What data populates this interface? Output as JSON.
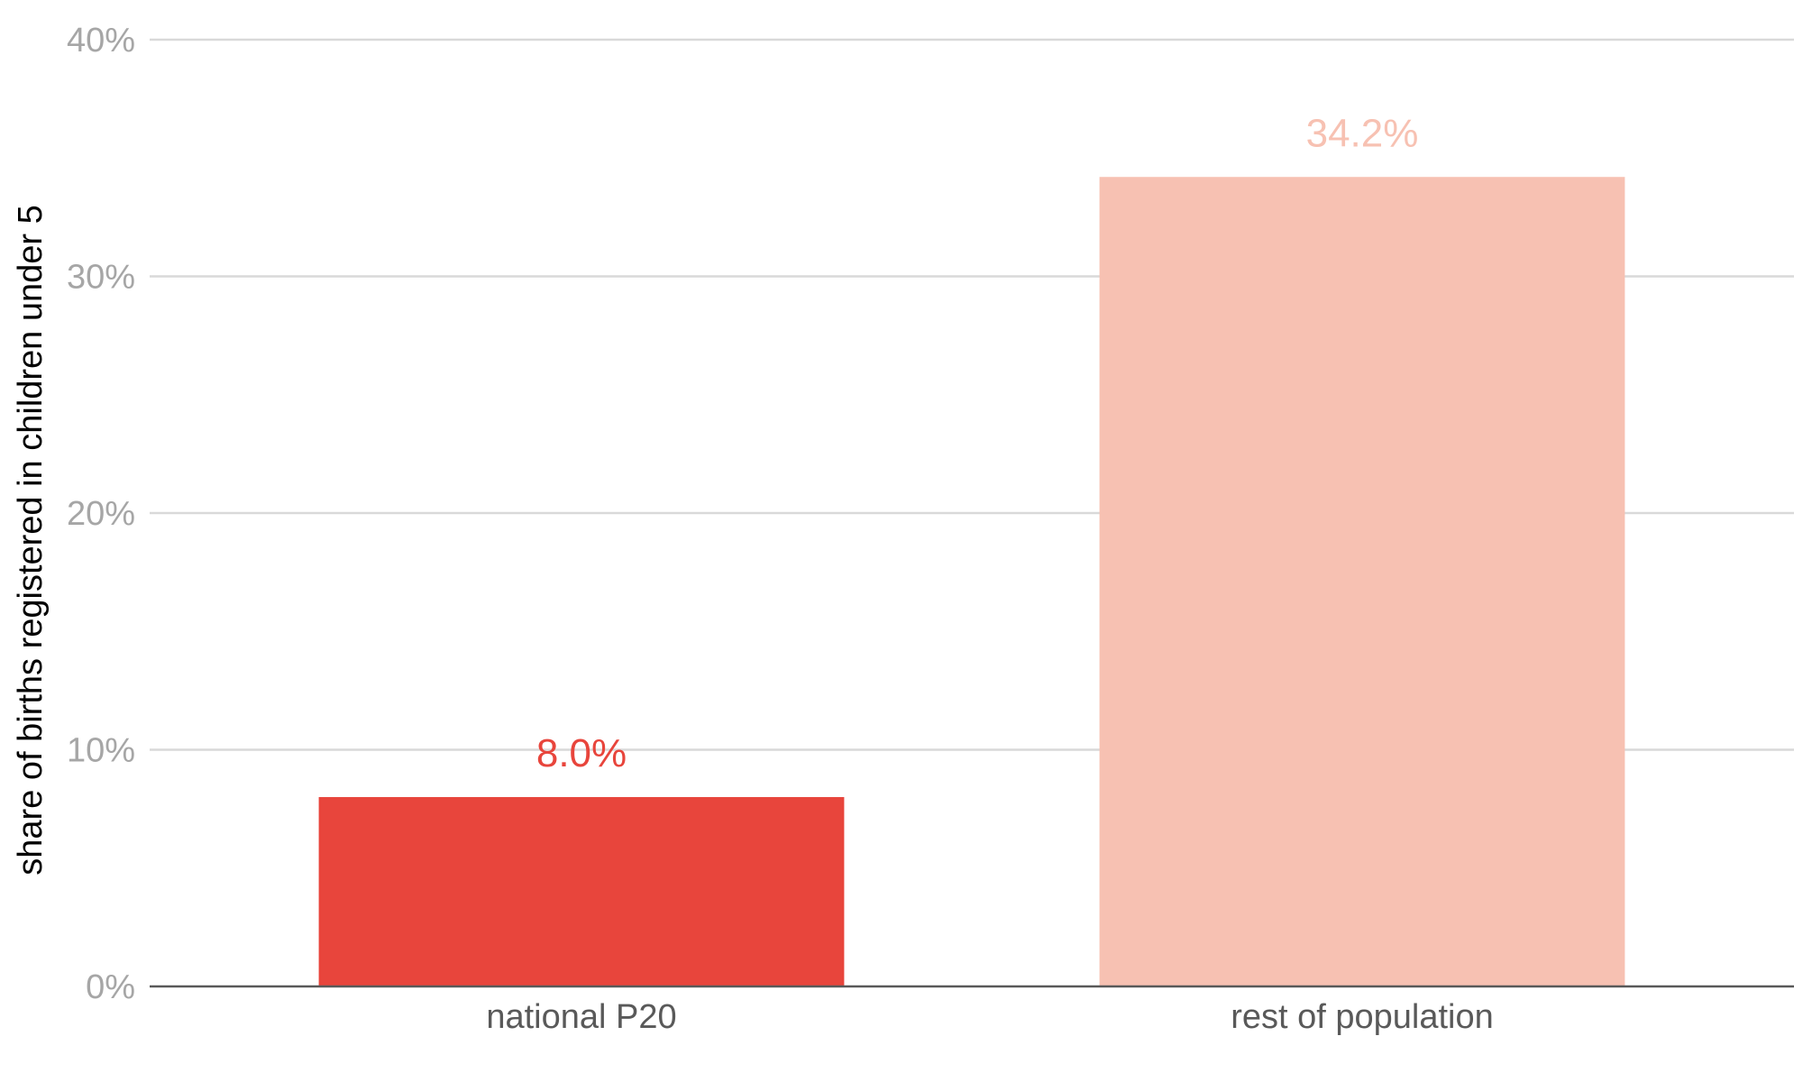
{
  "chart_data": {
    "type": "bar",
    "title": "",
    "xlabel": "",
    "ylabel": "share of births registered in children under 5",
    "ylim": [
      0,
      40
    ],
    "yticks": [
      0,
      10,
      20,
      30,
      40
    ],
    "ytick_labels": [
      "0%",
      "10%",
      "20%",
      "30%",
      "40%"
    ],
    "grid": true,
    "legend": "none",
    "categories": [
      "national P20",
      "rest of population"
    ],
    "values": [
      8.0,
      34.2
    ],
    "data_labels": [
      "8.0%",
      "34.2%"
    ],
    "colors": [
      "#e8453c",
      "#f7c1b2"
    ]
  }
}
